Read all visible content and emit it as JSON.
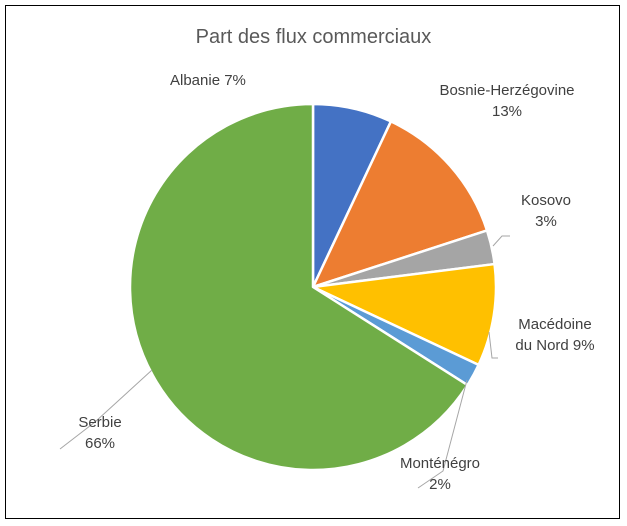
{
  "chart_data": {
    "type": "pie",
    "title": "Part des flux commerciaux",
    "start_angle_deg": 0,
    "direction": "clockwise",
    "slices": [
      {
        "label": "Albanie",
        "value": 7,
        "percent_label": "7%",
        "color": "#4472C4"
      },
      {
        "label": "Bosnie-Herzégovine",
        "value": 13,
        "percent_label": "13%",
        "color": "#ED7D31"
      },
      {
        "label": "Kosovo",
        "value": 3,
        "percent_label": "3%",
        "color": "#A5A5A5"
      },
      {
        "label": "Macédoine du Nord",
        "value": 9,
        "percent_label": "9%",
        "color": "#FFC000"
      },
      {
        "label": "Monténégro",
        "value": 2,
        "percent_label": "2%",
        "color": "#5B9BD5"
      },
      {
        "label": "Serbie",
        "value": 66,
        "percent_label": "66%",
        "color": "#70AD47"
      }
    ],
    "data_labels": {
      "albanie": {
        "text": "Albanie 7%"
      },
      "bosnie": {
        "line1": "Bosnie-Herzégovine",
        "line2": "13%"
      },
      "kosovo": {
        "line1": "Kosovo",
        "line2": "3%"
      },
      "macedoine": {
        "line1": "Macédoine",
        "line2": "du Nord 9%"
      },
      "montenegro": {
        "line1": "Monténégro",
        "line2": "2%"
      },
      "serbie": {
        "line1": "Serbie",
        "line2": "66%"
      }
    },
    "legend": "none"
  }
}
